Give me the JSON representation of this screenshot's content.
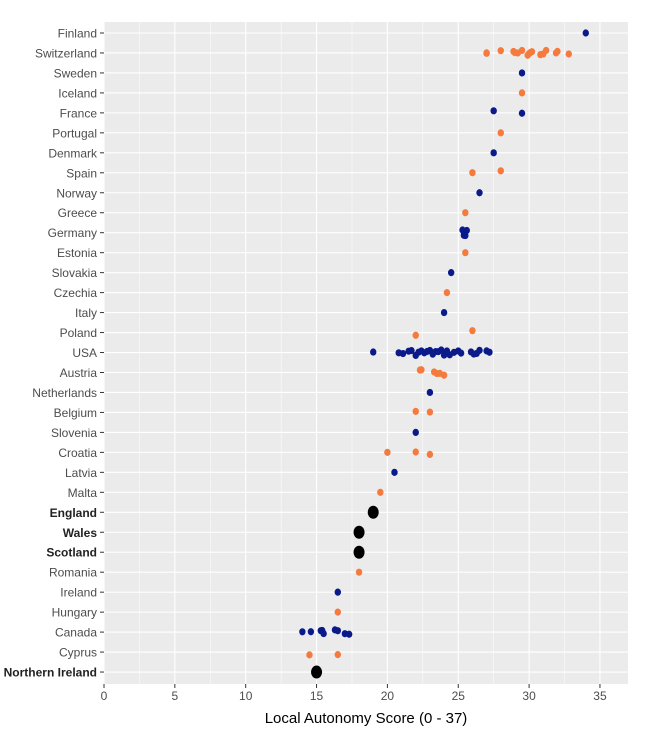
{
  "chart_data": {
    "type": "scatter",
    "title": "",
    "xlabel": "Local Autonomy Score (0 - 37)",
    "ylabel": "",
    "xlim": [
      0,
      37
    ],
    "xticks": [
      0,
      5,
      10,
      15,
      20,
      25,
      30,
      35
    ],
    "grid": true,
    "legend": "none",
    "colors": {
      "blue": "#0b1a8a",
      "orange": "#f57a3e",
      "uk": "#000000",
      "panel": "#ebebeb",
      "grid": "#ffffff"
    },
    "rows": [
      {
        "country": "Finland",
        "group": "blue",
        "bold": false,
        "values": [
          34
        ]
      },
      {
        "country": "Switzerland",
        "group": "orange",
        "bold": false,
        "values": [
          27,
          27,
          28,
          28.9,
          29,
          29.2,
          29.5,
          29.9,
          30,
          30.1,
          30.2,
          30.8,
          31,
          31.2,
          31.9,
          32,
          32.8
        ]
      },
      {
        "country": "Sweden",
        "group": "blue",
        "bold": false,
        "values": [
          29.5
        ]
      },
      {
        "country": "Iceland",
        "group": "orange",
        "bold": false,
        "values": [
          29.5
        ]
      },
      {
        "country": "France",
        "group": "blue",
        "bold": false,
        "values": [
          27.5,
          29.5
        ]
      },
      {
        "country": "Portugal",
        "group": "orange",
        "bold": false,
        "values": [
          28
        ]
      },
      {
        "country": "Denmark",
        "group": "blue",
        "bold": false,
        "values": [
          27.5
        ]
      },
      {
        "country": "Spain",
        "group": "orange",
        "bold": false,
        "values": [
          26,
          28
        ]
      },
      {
        "country": "Norway",
        "group": "blue",
        "bold": false,
        "values": [
          26.5
        ]
      },
      {
        "country": "Greece",
        "group": "orange",
        "bold": false,
        "values": [
          25.5
        ]
      },
      {
        "country": "Germany",
        "group": "blue",
        "bold": false,
        "values": [
          25.3,
          25.4,
          25.5,
          25.6,
          25.4
        ]
      },
      {
        "country": "Estonia",
        "group": "orange",
        "bold": false,
        "values": [
          25.5
        ]
      },
      {
        "country": "Slovakia",
        "group": "blue",
        "bold": false,
        "values": [
          24.5
        ]
      },
      {
        "country": "Czechia",
        "group": "orange",
        "bold": false,
        "values": [
          24.2
        ]
      },
      {
        "country": "Italy",
        "group": "blue",
        "bold": false,
        "values": [
          24
        ]
      },
      {
        "country": "Poland",
        "group": "orange",
        "bold": false,
        "values": [
          22,
          26
        ]
      },
      {
        "country": "USA",
        "group": "blue",
        "bold": false,
        "values": [
          19,
          20.8,
          21.1,
          21.5,
          21.7,
          22,
          22.2,
          22.4,
          22.6,
          22.8,
          23,
          23.2,
          23.4,
          23.6,
          23.8,
          24,
          24.2,
          24.4,
          24.7,
          25,
          25.2,
          25.9,
          26.1,
          26.3,
          26.5,
          27,
          27.2
        ]
      },
      {
        "country": "Austria",
        "group": "orange",
        "bold": false,
        "values": [
          22.3,
          22.4,
          23.3,
          23.5,
          23.7,
          24
        ]
      },
      {
        "country": "Netherlands",
        "group": "blue",
        "bold": false,
        "values": [
          23
        ]
      },
      {
        "country": "Belgium",
        "group": "orange",
        "bold": false,
        "values": [
          22,
          23
        ]
      },
      {
        "country": "Slovenia",
        "group": "blue",
        "bold": false,
        "values": [
          22
        ]
      },
      {
        "country": "Croatia",
        "group": "orange",
        "bold": false,
        "values": [
          20,
          22,
          23
        ]
      },
      {
        "country": "Latvia",
        "group": "blue",
        "bold": false,
        "values": [
          20.5
        ]
      },
      {
        "country": "Malta",
        "group": "orange",
        "bold": false,
        "values": [
          19.5
        ]
      },
      {
        "country": "England",
        "group": "uk",
        "bold": true,
        "values": [
          19
        ]
      },
      {
        "country": "Wales",
        "group": "uk",
        "bold": true,
        "values": [
          18
        ]
      },
      {
        "country": "Scotland",
        "group": "uk",
        "bold": true,
        "values": [
          18
        ]
      },
      {
        "country": "Romania",
        "group": "orange",
        "bold": false,
        "values": [
          18
        ]
      },
      {
        "country": "Ireland",
        "group": "blue",
        "bold": false,
        "values": [
          16.5
        ]
      },
      {
        "country": "Hungary",
        "group": "orange",
        "bold": false,
        "values": [
          16.5
        ]
      },
      {
        "country": "Canada",
        "group": "blue",
        "bold": false,
        "values": [
          14,
          14.6,
          15.3,
          15.4,
          15.5,
          16.3,
          16.5,
          17,
          17.3
        ]
      },
      {
        "country": "Cyprus",
        "group": "orange",
        "bold": false,
        "values": [
          14.5,
          16.5
        ]
      },
      {
        "country": "Northern Ireland",
        "group": "uk",
        "bold": true,
        "values": [
          15
        ]
      }
    ]
  }
}
